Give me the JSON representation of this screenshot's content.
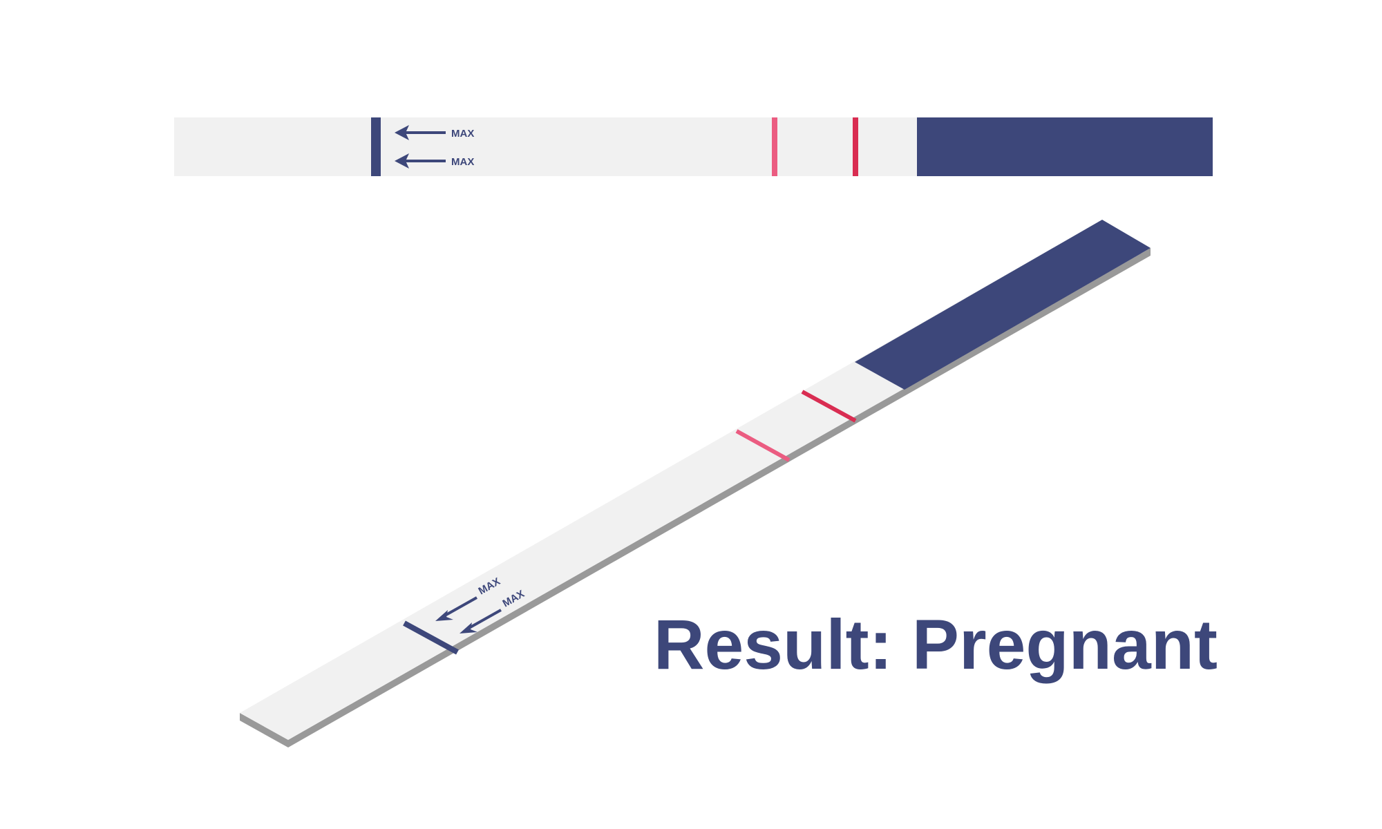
{
  "flat_strip": {
    "max_labels": [
      "MAX",
      "MAX"
    ]
  },
  "iso_strip": {
    "max_labels": [
      "MAX",
      "MAX"
    ]
  },
  "result": {
    "text": "Result: Pregnant"
  },
  "colors": {
    "strip_body": "#f1f1f1",
    "handle_navy": "#3d477a",
    "control_line_pink": "#eb5c81",
    "test_line_red": "#d92d52",
    "strip_edge_gray": "#999999"
  }
}
